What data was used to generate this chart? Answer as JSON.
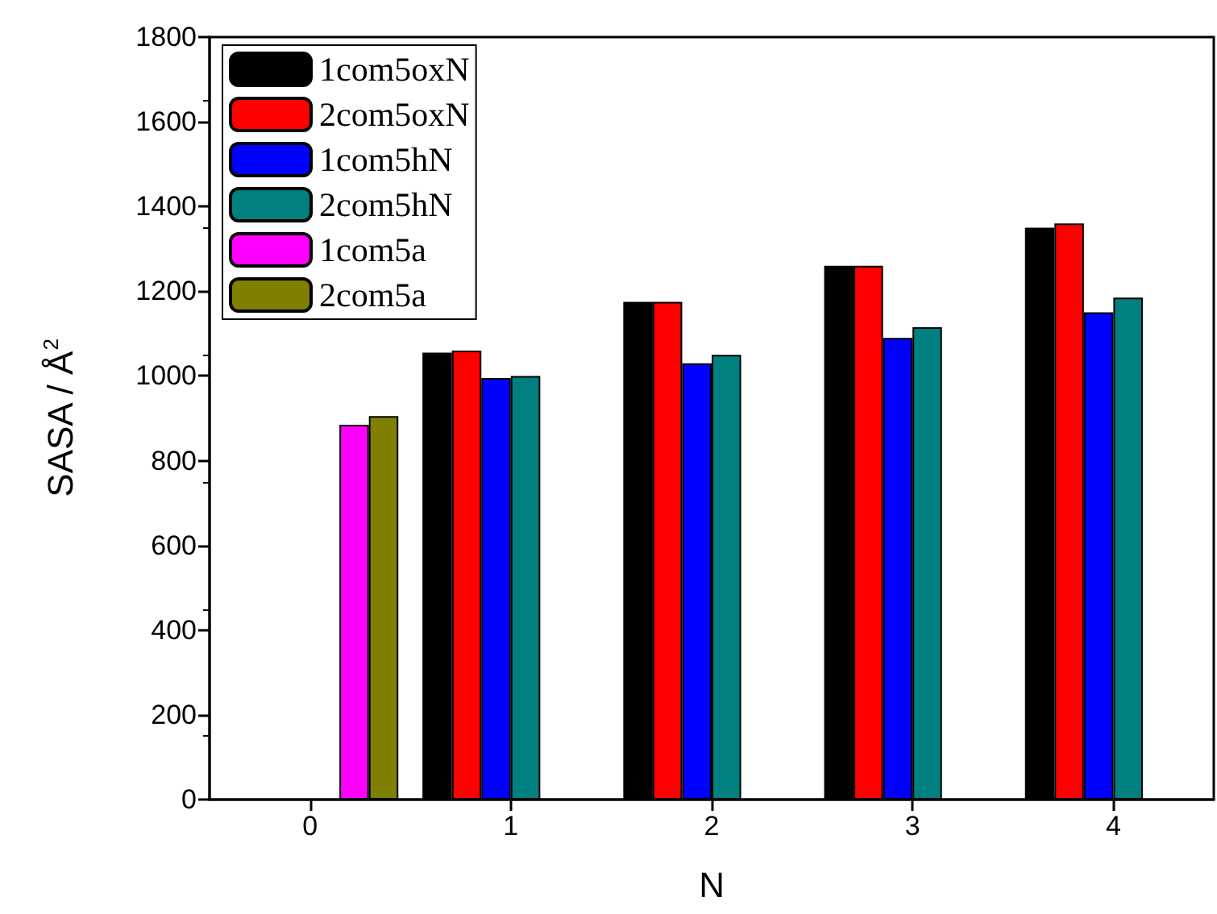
{
  "chart_data": {
    "type": "bar",
    "xlabel": "N",
    "ylabel": "SASA / Å$^{2}$",
    "categories": [
      "0",
      "1",
      "2",
      "3",
      "4"
    ],
    "series": [
      {
        "name": "1com5oxN",
        "color": "#000000",
        "values": [
          null,
          1055,
          1175,
          1260,
          1350
        ]
      },
      {
        "name": "2com5oxN",
        "color": "#ff0000",
        "values": [
          null,
          1060,
          1175,
          1260,
          1360
        ]
      },
      {
        "name": "1com5hN",
        "color": "#0000ff",
        "values": [
          null,
          995,
          1030,
          1090,
          1150
        ]
      },
      {
        "name": "2com5hN",
        "color": "#008080",
        "values": [
          null,
          1000,
          1050,
          1115,
          1185
        ]
      },
      {
        "name": "1com5a",
        "color": "#ff00ff",
        "values": [
          885,
          null,
          null,
          null,
          null
        ]
      },
      {
        "name": "2com5a",
        "color": "#808000",
        "values": [
          905,
          null,
          null,
          null,
          null
        ]
      }
    ],
    "ylim": [
      0,
      1800
    ],
    "yticks": [
      0,
      200,
      400,
      600,
      800,
      1000,
      1200,
      1400,
      1600,
      1800
    ],
    "grid": false,
    "legend": "top left"
  }
}
